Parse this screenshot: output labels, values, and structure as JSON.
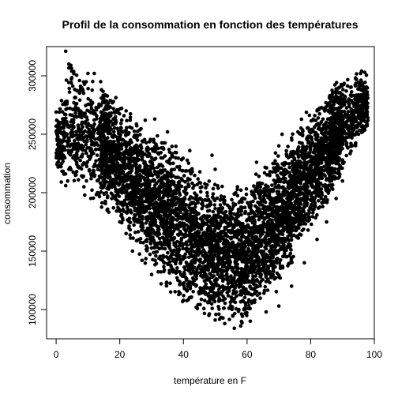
{
  "chart_data": {
    "type": "scatter",
    "title": "Profil de la consommation en fonction des températures",
    "xlabel": "température en F",
    "ylabel": "consommation",
    "xlim": [
      -3,
      100
    ],
    "ylim": [
      75000,
      325000
    ],
    "xticks": [
      0,
      20,
      40,
      60,
      80,
      100
    ],
    "yticks": [
      100000,
      150000,
      200000,
      250000,
      300000
    ],
    "xtick_labels": [
      "0",
      "20",
      "40",
      "60",
      "80",
      "100"
    ],
    "ytick_labels": [
      "100000",
      "150000",
      "200000",
      "250000",
      "300000"
    ],
    "grid": false,
    "legend": "none",
    "point_color": "#000000",
    "envelope_x": [
      0,
      5,
      10,
      15,
      20,
      25,
      30,
      35,
      40,
      45,
      50,
      55,
      60,
      65,
      70,
      75,
      80,
      85,
      90,
      95,
      98
    ],
    "envelope_ymin": [
      205000,
      200000,
      195000,
      185000,
      170000,
      150000,
      130000,
      115000,
      105000,
      95000,
      88000,
      86000,
      88000,
      100000,
      112000,
      140000,
      165000,
      185000,
      215000,
      240000,
      255000
    ],
    "envelope_ymax": [
      270000,
      320000,
      302000,
      290000,
      280000,
      265000,
      258000,
      250000,
      238000,
      225000,
      215000,
      206000,
      210000,
      225000,
      240000,
      255000,
      275000,
      288000,
      300000,
      305000,
      300000
    ],
    "points": [
      [
        3,
        321000
      ],
      [
        4,
        310000
      ],
      [
        10,
        302000
      ],
      [
        12,
        302000
      ],
      [
        14,
        295000
      ],
      [
        8,
        290000
      ],
      [
        96,
        304000
      ],
      [
        97,
        303000
      ],
      [
        0,
        269000
      ],
      [
        1,
        242000
      ],
      [
        2,
        229000
      ],
      [
        3,
        206000
      ],
      [
        4,
        220000
      ],
      [
        6,
        231000
      ],
      [
        9,
        198000
      ],
      [
        7,
        211000
      ],
      [
        2,
        236000
      ],
      [
        5,
        248000
      ],
      [
        94,
        292000
      ],
      [
        98,
        262000
      ],
      [
        95,
        250000
      ],
      [
        93,
        240000
      ],
      [
        91,
        265000
      ],
      [
        92,
        280000
      ],
      [
        56,
        84000
      ],
      [
        58,
        86000
      ],
      [
        53,
        88000
      ],
      [
        50,
        91000
      ],
      [
        61,
        90000
      ],
      [
        48,
        95000
      ],
      [
        66,
        98000
      ],
      [
        70,
        103000
      ],
      [
        44,
        102000
      ],
      [
        40,
        108000
      ],
      [
        74,
        120000
      ],
      [
        36,
        115000
      ],
      [
        33,
        122000
      ],
      [
        30,
        130000
      ],
      [
        27,
        142000
      ],
      [
        24,
        150000
      ],
      [
        22,
        165000
      ],
      [
        20,
        175000
      ],
      [
        78,
        140000
      ],
      [
        82,
        160000
      ],
      [
        85,
        175000
      ],
      [
        88,
        195000
      ],
      [
        90,
        210000
      ],
      [
        16,
        185000
      ],
      [
        13,
        200000
      ],
      [
        11,
        212000
      ],
      [
        18,
        278000
      ],
      [
        22,
        270000
      ],
      [
        28,
        262000
      ],
      [
        35,
        252000
      ],
      [
        42,
        236000
      ],
      [
        50,
        220000
      ],
      [
        57,
        205000
      ],
      [
        63,
        226000
      ],
      [
        70,
        240000
      ],
      [
        76,
        252000
      ],
      [
        82,
        270000
      ],
      [
        86,
        283000
      ],
      [
        89,
        290000
      ],
      [
        71,
        250000
      ],
      [
        49,
        232000
      ],
      [
        31,
        263000
      ]
    ]
  }
}
